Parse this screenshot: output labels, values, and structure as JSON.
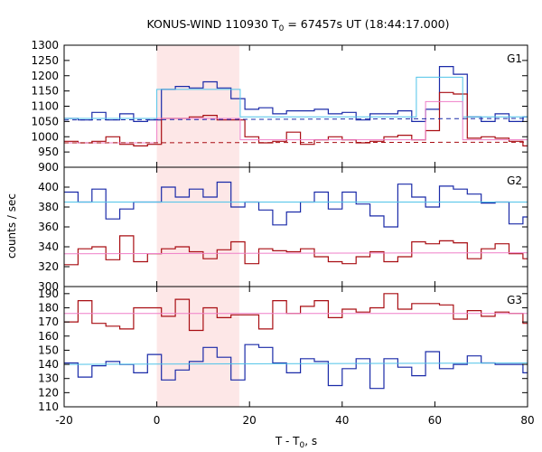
{
  "chart_data": {
    "type": "line",
    "title": "KONUS-WIND 110930 T",
    "title_sub": "0",
    "title_rest": " = 67457s UT (18:44:17.000)",
    "xlabel": "T - T",
    "xlabel_sub": "0",
    "xlabel_rest": ", s",
    "ylabel": "counts / sec",
    "xlim": [
      -20,
      80
    ],
    "x_ticks": [
      "-20",
      "0",
      "20",
      "40",
      "60",
      "80"
    ],
    "x_tick_values": [
      -20,
      0,
      20,
      40,
      60,
      80
    ],
    "highlight": {
      "from": 0,
      "to": 17.8,
      "color": "#fde7e7"
    },
    "colors": {
      "blue": "#1a2aa8",
      "red": "#a80d12",
      "cyan": "#4fc3e8",
      "pink": "#ef7fc8"
    },
    "panels": [
      {
        "name": "G1",
        "ylim": [
          900,
          1300
        ],
        "y_ticks": [
          "900",
          "950",
          "1000",
          "1050",
          "1100",
          "1150",
          "1200",
          "1250",
          "1300"
        ],
        "y_tick_values": [
          900,
          950,
          1000,
          1050,
          1100,
          1150,
          1200,
          1250,
          1300
        ],
        "series": [
          {
            "style": "step",
            "color": "blue",
            "x": [
              -20,
              -17,
              -14,
              -11,
              -8,
              -5,
              -2,
              1,
              4,
              7,
              10,
              13,
              16,
              19,
              22,
              25,
              28,
              31,
              34,
              37,
              40,
              43,
              46,
              49,
              52,
              55,
              58,
              61,
              64,
              67,
              70,
              73,
              76,
              79
            ],
            "y": [
              1060,
              1055,
              1080,
              1055,
              1075,
              1050,
              1055,
              1155,
              1165,
              1160,
              1180,
              1160,
              1125,
              1090,
              1095,
              1075,
              1085,
              1085,
              1090,
              1075,
              1080,
              1055,
              1075,
              1075,
              1085,
              1050,
              1090,
              1230,
              1205,
              1065,
              1050,
              1075,
              1050,
              1065
            ]
          },
          {
            "style": "step",
            "color": "red",
            "x": [
              -20,
              -17,
              -14,
              -11,
              -8,
              -5,
              -2,
              1,
              4,
              7,
              10,
              13,
              16,
              19,
              22,
              25,
              28,
              31,
              34,
              37,
              40,
              43,
              46,
              49,
              52,
              55,
              58,
              61,
              64,
              67,
              70,
              73,
              76,
              79
            ],
            "y": [
              985,
              980,
              985,
              1000,
              975,
              970,
              975,
              1060,
              1060,
              1065,
              1070,
              1055,
              1055,
              1000,
              980,
              985,
              1015,
              975,
              990,
              1000,
              990,
              980,
              985,
              1000,
              1005,
              990,
              1020,
              1145,
              1140,
              995,
              1000,
              995,
              985,
              970
            ]
          },
          {
            "style": "flat",
            "color": "cyan",
            "dash": false,
            "segments": [
              [
                -20,
                1060
              ],
              [
                0,
                1060
              ],
              [
                0,
                1155
              ],
              [
                18,
                1155
              ],
              [
                18,
                1065
              ],
              [
                56,
                1065
              ],
              [
                56,
                1195
              ],
              [
                66,
                1195
              ],
              [
                66,
                1065
              ],
              [
                80,
                1065
              ]
            ]
          },
          {
            "style": "flat",
            "color": "pink",
            "dash": false,
            "segments": [
              [
                -20,
                980
              ],
              [
                0,
                980
              ],
              [
                0,
                1060
              ],
              [
                18,
                1060
              ],
              [
                18,
                990
              ],
              [
                58,
                990
              ],
              [
                58,
                1115
              ],
              [
                66,
                1115
              ],
              [
                66,
                990
              ],
              [
                80,
                990
              ]
            ]
          },
          {
            "style": "flat",
            "color": "blue",
            "dash": true,
            "segments": [
              [
                -20,
                1055
              ],
              [
                80,
                1060
              ]
            ]
          },
          {
            "style": "flat",
            "color": "red",
            "dash": true,
            "segments": [
              [
                -20,
                980
              ],
              [
                80,
                982
              ]
            ]
          }
        ]
      },
      {
        "name": "G2",
        "ylim": [
          300,
          420
        ],
        "y_ticks": [
          "300",
          "320",
          "340",
          "360",
          "380",
          "400"
        ],
        "y_tick_values": [
          300,
          320,
          340,
          360,
          380,
          400
        ],
        "series": [
          {
            "style": "step",
            "color": "blue",
            "x": [
              -20,
              -17,
              -14,
              -11,
              -8,
              -5,
              -2,
              1,
              4,
              7,
              10,
              13,
              16,
              19,
              22,
              25,
              28,
              31,
              34,
              37,
              40,
              43,
              46,
              49,
              52,
              55,
              58,
              61,
              64,
              67,
              70,
              73,
              76,
              79
            ],
            "y": [
              395,
              385,
              398,
              368,
              378,
              385,
              385,
              400,
              390,
              398,
              390,
              405,
              380,
              385,
              377,
              362,
              375,
              385,
              395,
              378,
              395,
              383,
              371,
              360,
              403,
              390,
              380,
              401,
              398,
              393,
              384,
              385,
              363,
              370
            ]
          },
          {
            "style": "step",
            "color": "red",
            "x": [
              -20,
              -17,
              -14,
              -11,
              -8,
              -5,
              -2,
              1,
              4,
              7,
              10,
              13,
              16,
              19,
              22,
              25,
              28,
              31,
              34,
              37,
              40,
              43,
              46,
              49,
              52,
              55,
              58,
              61,
              64,
              67,
              70,
              73,
              76,
              79
            ],
            "y": [
              322,
              338,
              340,
              327,
              351,
              325,
              333,
              338,
              340,
              335,
              328,
              337,
              345,
              323,
              338,
              336,
              335,
              338,
              330,
              325,
              323,
              330,
              335,
              325,
              330,
              345,
              343,
              346,
              344,
              328,
              338,
              343,
              333,
              328
            ]
          },
          {
            "style": "flat",
            "color": "cyan",
            "dash": false,
            "segments": [
              [
                -20,
                385
              ],
              [
                80,
                385
              ]
            ]
          },
          {
            "style": "flat",
            "color": "pink",
            "dash": false,
            "segments": [
              [
                -20,
                333
              ],
              [
                80,
                334
              ]
            ]
          }
        ]
      },
      {
        "name": "G3",
        "ylim": [
          110,
          195
        ],
        "y_ticks": [
          "110",
          "120",
          "130",
          "140",
          "150",
          "160",
          "170",
          "180",
          "190"
        ],
        "y_tick_values": [
          110,
          120,
          130,
          140,
          150,
          160,
          170,
          180,
          190
        ],
        "series": [
          {
            "style": "step",
            "color": "blue",
            "x": [
              -20,
              -17,
              -14,
              -11,
              -8,
              -5,
              -2,
              1,
              4,
              7,
              10,
              13,
              16,
              19,
              22,
              25,
              28,
              31,
              34,
              37,
              40,
              43,
              46,
              49,
              52,
              55,
              58,
              61,
              64,
              67,
              70,
              73,
              76,
              79
            ],
            "y": [
              141,
              131,
              139,
              142,
              140,
              134,
              147,
              129,
              136,
              142,
              152,
              145,
              129,
              154,
              152,
              141,
              134,
              144,
              142,
              125,
              137,
              144,
              123,
              144,
              138,
              132,
              149,
              137,
              140,
              146,
              141,
              140,
              140,
              134
            ]
          },
          {
            "style": "step",
            "color": "red",
            "x": [
              -20,
              -17,
              -14,
              -11,
              -8,
              -5,
              -2,
              1,
              4,
              7,
              10,
              13,
              16,
              19,
              22,
              25,
              28,
              31,
              34,
              37,
              40,
              43,
              46,
              49,
              52,
              55,
              58,
              61,
              64,
              67,
              70,
              73,
              76,
              79
            ],
            "y": [
              170,
              185,
              169,
              167,
              165,
              180,
              180,
              174,
              186,
              164,
              180,
              173,
              175,
              175,
              165,
              185,
              176,
              181,
              185,
              173,
              179,
              177,
              180,
              190,
              179,
              183,
              183,
              182,
              172,
              178,
              174,
              177,
              176,
              169
            ]
          },
          {
            "style": "flat",
            "color": "cyan",
            "dash": false,
            "segments": [
              [
                -20,
                140
              ],
              [
                80,
                141
              ]
            ]
          },
          {
            "style": "flat",
            "color": "pink",
            "dash": false,
            "segments": [
              [
                -20,
                176
              ],
              [
                80,
                176
              ]
            ]
          }
        ]
      }
    ]
  }
}
